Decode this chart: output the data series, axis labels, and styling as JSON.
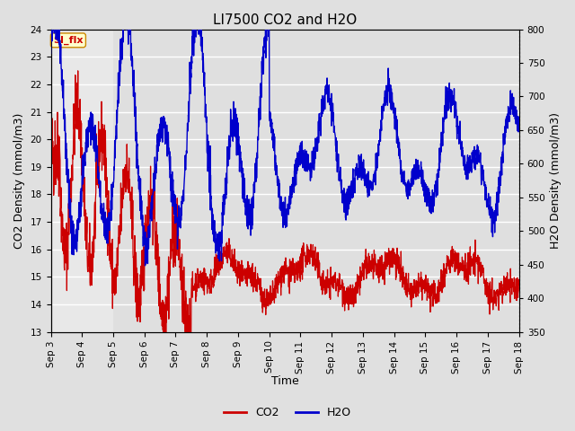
{
  "title": "LI7500 CO2 and H2O",
  "xlabel": "Time",
  "ylabel_left": "CO2 Density (mmol/m3)",
  "ylabel_right": "H2O Density (mmol/m3)",
  "ylim_left": [
    13.0,
    24.0
  ],
  "ylim_right": [
    350,
    800
  ],
  "yticks_left": [
    13.0,
    14.0,
    15.0,
    16.0,
    17.0,
    18.0,
    19.0,
    20.0,
    21.0,
    22.0,
    23.0,
    24.0
  ],
  "yticks_right": [
    350,
    400,
    450,
    500,
    550,
    600,
    650,
    700,
    750,
    800
  ],
  "xtick_labels": [
    "Sep 3",
    "Sep 4",
    "Sep 5",
    "Sep 6",
    "Sep 7",
    "Sep 8",
    "Sep 9",
    "Sep 10",
    "Sep 11",
    "Sep 12",
    "Sep 13",
    "Sep 14",
    "Sep 15",
    "Sep 16",
    "Sep 17",
    "Sep 18"
  ],
  "legend_labels": [
    "CO2",
    "H2O"
  ],
  "legend_colors": [
    "#cc0000",
    "#0000cc"
  ],
  "co2_color": "#cc0000",
  "h2o_color": "#0000cc",
  "background_color": "#e0e0e0",
  "plot_bg_color": "#e8e8e8",
  "tag_text": "SI_flx",
  "tag_bg": "#ffffcc",
  "tag_border": "#cc8800",
  "tag_text_color": "#cc0000",
  "grid_color": "#ffffff",
  "title_fontsize": 11,
  "axis_fontsize": 9,
  "tick_fontsize": 7.5
}
